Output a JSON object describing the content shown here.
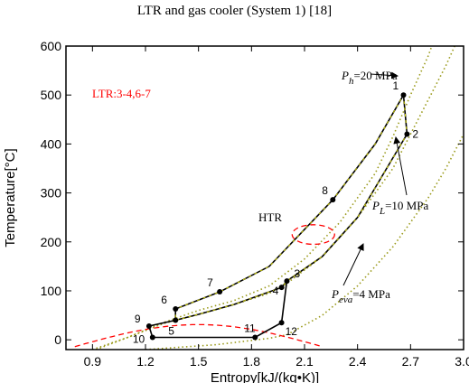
{
  "chart_data": {
    "type": "line",
    "title": "LTR and gas cooler (System 1) [18]",
    "xlabel": "Entropy[kJ/(kg•K)]",
    "ylabel": "Temperature[°C]",
    "xlim": [
      0.75,
      3.0
    ],
    "ylim": [
      -20,
      600
    ],
    "xticks": [
      0.9,
      1.2,
      1.5,
      1.8,
      2.1,
      2.4,
      2.7,
      3.0
    ],
    "xtick_labels": [
      "0.9",
      "1.2",
      "1.5",
      "1.8",
      "2.1",
      "2.4",
      "2.7",
      "3.0"
    ],
    "yticks": [
      0,
      100,
      200,
      300,
      400,
      500,
      600
    ],
    "ytick_labels": [
      "0",
      "100",
      "200",
      "300",
      "400",
      "500",
      "600"
    ],
    "grid": false,
    "isobars": [
      {
        "label_main": "P",
        "label_sub": "h",
        "label_value": "=20 MPa",
        "color": "#9a9a1a",
        "points": [
          [
            0.9,
            -20
          ],
          [
            1.1,
            5
          ],
          [
            1.3,
            35
          ],
          [
            1.5,
            60
          ],
          [
            1.7,
            80
          ],
          [
            1.9,
            110
          ],
          [
            2.1,
            165
          ],
          [
            2.3,
            240
          ],
          [
            2.5,
            340
          ],
          [
            2.6,
            415
          ],
          [
            2.7,
            500
          ],
          [
            2.8,
            580
          ],
          [
            2.82,
            600
          ]
        ]
      },
      {
        "label_main": "P",
        "label_sub": "L",
        "label_value": "=10 MPa",
        "color": "#9a9a1a",
        "points": [
          [
            0.92,
            -20
          ],
          [
            1.1,
            5
          ],
          [
            1.3,
            33
          ],
          [
            1.5,
            52
          ],
          [
            1.7,
            72
          ],
          [
            1.9,
            95
          ],
          [
            2.0,
            115
          ],
          [
            2.2,
            170
          ],
          [
            2.4,
            250
          ],
          [
            2.6,
            350
          ],
          [
            2.7,
            420
          ],
          [
            2.8,
            490
          ],
          [
            2.9,
            560
          ],
          [
            2.95,
            600
          ]
        ]
      },
      {
        "label_main": "P",
        "label_sub": "eva",
        "label_value": "=4 MPa",
        "color": "#9a9a1a",
        "points": [
          [
            1.2,
            -20
          ],
          [
            1.6,
            -10
          ],
          [
            1.9,
            3
          ],
          [
            2.0,
            10
          ],
          [
            2.2,
            50
          ],
          [
            2.4,
            110
          ],
          [
            2.6,
            190
          ],
          [
            2.8,
            290
          ],
          [
            2.9,
            350
          ],
          [
            3.0,
            420
          ]
        ]
      }
    ],
    "cycle_points": [
      {
        "label": "1",
        "x": 2.66,
        "y": 500
      },
      {
        "label": "2",
        "x": 2.68,
        "y": 420
      },
      {
        "label": "3",
        "x": 2.0,
        "y": 120
      },
      {
        "label": "4",
        "x": 1.97,
        "y": 107
      },
      {
        "label": "5",
        "x": 1.37,
        "y": 40
      },
      {
        "label": "6",
        "x": 1.37,
        "y": 63
      },
      {
        "label": "7",
        "x": 1.62,
        "y": 98
      },
      {
        "label": "8",
        "x": 2.26,
        "y": 286
      },
      {
        "label": "9",
        "x": 1.22,
        "y": 28
      },
      {
        "label": "10",
        "x": 1.24,
        "y": 5
      },
      {
        "label": "11",
        "x": 1.82,
        "y": 5
      },
      {
        "label": "12",
        "x": 1.97,
        "y": 35
      }
    ],
    "cycle_path": [
      [
        2.66,
        500
      ],
      [
        2.68,
        420
      ],
      [
        2.4,
        250
      ],
      [
        2.2,
        170
      ],
      [
        2.0,
        120
      ],
      [
        1.97,
        107
      ],
      [
        1.7,
        72
      ],
      [
        1.5,
        52
      ],
      [
        1.37,
        40
      ],
      [
        1.37,
        63
      ],
      [
        1.62,
        98
      ],
      [
        1.9,
        150
      ],
      [
        2.26,
        286
      ],
      [
        2.5,
        400
      ],
      [
        2.66,
        500
      ]
    ],
    "cycle_path_low": [
      [
        1.37,
        40
      ],
      [
        1.22,
        28
      ],
      [
        1.24,
        5
      ],
      [
        1.82,
        5
      ],
      [
        1.97,
        35
      ],
      [
        2.0,
        120
      ]
    ],
    "dome": {
      "center_x": 1.5,
      "peak_y": 31,
      "left_x": 0.8,
      "right_x": 2.2,
      "color": "#ff0000"
    },
    "htr_ellipse": {
      "center_x": 2.15,
      "center_y": 215,
      "rx": 0.12,
      "ry": 20,
      "color": "#ff0000"
    },
    "annotations": {
      "ltr": "LTR:3-4,6-7",
      "htr": "HTR"
    }
  }
}
